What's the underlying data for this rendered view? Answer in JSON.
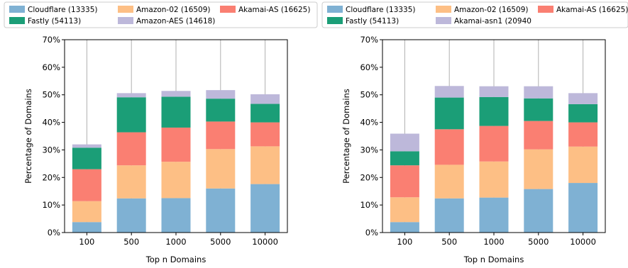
{
  "chart_data": [
    {
      "type": "bar",
      "stacked": true,
      "categories": [
        "100",
        "500",
        "1000",
        "5000",
        "10000"
      ],
      "xlabel": "Top n Domains",
      "ylabel": "Percentage of Domains",
      "ylim": [
        0,
        70
      ],
      "yticks": [
        "0%",
        "10%",
        "20%",
        "30%",
        "40%",
        "50%",
        "60%",
        "70%"
      ],
      "grid": "x",
      "legend_position": "top",
      "series": [
        {
          "name": "Cloudflare (13335)",
          "color": "#7fb1d3",
          "values": [
            3.8,
            12.4,
            12.5,
            16.0,
            17.6
          ]
        },
        {
          "name": "Amazon-02 (16509)",
          "color": "#fdbf85",
          "values": [
            7.6,
            12.0,
            13.2,
            14.3,
            13.7
          ]
        },
        {
          "name": "Akamai-AS (16625)",
          "color": "#fa7f72",
          "values": [
            11.6,
            12.0,
            12.4,
            10.0,
            8.7
          ]
        },
        {
          "name": "Fastly (54113)",
          "color": "#1b9e77",
          "values": [
            7.8,
            12.7,
            11.2,
            8.3,
            6.7
          ]
        },
        {
          "name": "Amazon-AES (14618)",
          "color": "#bdb8da",
          "values": [
            1.2,
            1.5,
            2.1,
            3.1,
            3.5
          ]
        }
      ]
    },
    {
      "type": "bar",
      "stacked": true,
      "categories": [
        "100",
        "500",
        "1000",
        "5000",
        "10000"
      ],
      "xlabel": "Top n Domains",
      "ylabel": "Percentage of Domains",
      "ylim": [
        0,
        70
      ],
      "yticks": [
        "0%",
        "10%",
        "20%",
        "30%",
        "40%",
        "50%",
        "60%",
        "70%"
      ],
      "grid": "x",
      "legend_position": "top",
      "series": [
        {
          "name": "Cloudflare (13335)",
          "color": "#7fb1d3",
          "values": [
            3.8,
            12.4,
            12.7,
            15.8,
            18.0
          ]
        },
        {
          "name": "Amazon-02 (16509)",
          "color": "#fdbf85",
          "values": [
            9.0,
            12.2,
            13.1,
            14.4,
            13.2
          ]
        },
        {
          "name": "Akamai-AS (16625)",
          "color": "#fa7f72",
          "values": [
            11.6,
            12.9,
            12.9,
            10.3,
            8.8
          ]
        },
        {
          "name": "Fastly (54113)",
          "color": "#1b9e77",
          "values": [
            5.1,
            11.5,
            10.5,
            8.2,
            6.6
          ]
        },
        {
          "name": "Akamai-asn1 (20940",
          "color": "#bdb8da",
          "values": [
            6.4,
            4.2,
            3.9,
            4.4,
            4.0
          ]
        }
      ]
    }
  ]
}
